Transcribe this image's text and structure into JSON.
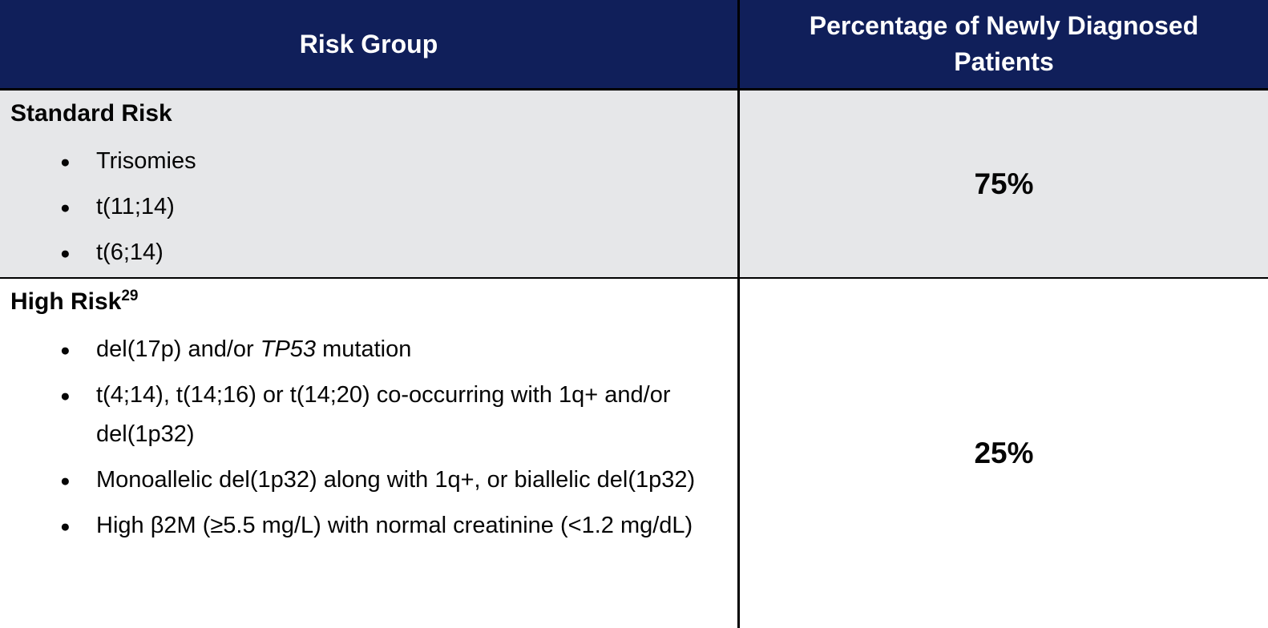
{
  "colors": {
    "header_bg": "#101f5a",
    "header_text": "#ffffff",
    "row_alt_bg": "#e6e7e9",
    "row_bg": "#ffffff",
    "border": "#000000"
  },
  "table": {
    "header": {
      "col1": "Risk Group",
      "col2": "Percentage of Newly Diagnosed Patients"
    },
    "rows": [
      {
        "title": "Standard Risk",
        "superscript": "",
        "bullets": [
          {
            "text": "Trisomies"
          },
          {
            "text": "t(11;14)"
          },
          {
            "text": "t(6;14)"
          }
        ],
        "percentage": "75%"
      },
      {
        "title": "High Risk",
        "superscript": "29",
        "bullets": [
          {
            "prefix": "del(17p) and/or ",
            "italic": "TP53",
            "suffix": " mutation"
          },
          {
            "text": "t(4;14), t(14;16) or t(14;20) co-occurring with 1q+ and/or del(1p32)"
          },
          {
            "text": "Monoallelic del(1p32) along with 1q+, or biallelic del(1p32)"
          },
          {
            "text": "High β2M (≥5.5 mg/L) with normal creatinine (<1.2 mg/dL)"
          }
        ],
        "percentage": "25%"
      }
    ]
  }
}
